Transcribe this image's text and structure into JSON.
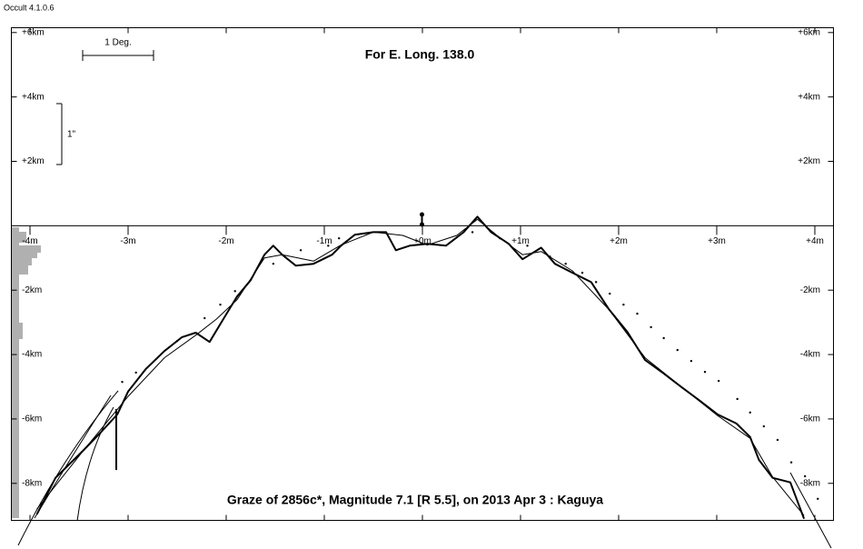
{
  "app_title": "Occult 4.1.0.6",
  "chart_data": {
    "type": "line",
    "title": "For E. Long. 138.0",
    "subtitle": "Graze of  2856c*,  Magnitude 7.1 [R 5.5],  on 2013 Apr  3  :  Kaguya",
    "annotations": [
      "1 Deg.",
      "1\""
    ],
    "xlim": [
      -4.19,
      4.19
    ],
    "ylim": [
      -9.15,
      6.15
    ],
    "xticks": [
      {
        "value": -4,
        "label": "-4m"
      },
      {
        "value": -3,
        "label": "-3m"
      },
      {
        "value": -2,
        "label": "-2m"
      },
      {
        "value": -1,
        "label": "-1m"
      },
      {
        "value": 0,
        "label": "+0m"
      },
      {
        "value": 1,
        "label": "+1m"
      },
      {
        "value": 2,
        "label": "+2m"
      },
      {
        "value": 3,
        "label": "+3m"
      },
      {
        "value": 4,
        "label": "+4m"
      }
    ],
    "yticks": [
      {
        "value": 6,
        "label": "+6km"
      },
      {
        "value": 4,
        "label": "+4km"
      },
      {
        "value": 2,
        "label": "+2km"
      },
      {
        "value": -2,
        "label": "-2km"
      },
      {
        "value": -4,
        "label": "-4km"
      },
      {
        "value": -6,
        "label": "-6km"
      },
      {
        "value": -8,
        "label": "-8km"
      }
    ],
    "series": [
      {
        "color": "#000000",
        "style": "thick",
        "x": [
          -3.93,
          -3.74,
          -3.46,
          -3.28,
          -3.11,
          -3.0,
          -2.82,
          -2.63,
          -2.45,
          -2.31,
          -2.17,
          -2.03,
          -1.89,
          -1.75,
          -1.61,
          -1.52,
          -1.43,
          -1.29,
          -1.11,
          -0.92,
          -0.83,
          -0.69,
          -0.5,
          -0.37,
          -0.27,
          -0.13,
          0.05,
          0.24,
          0.42,
          0.56,
          0.7,
          0.88,
          1.02,
          1.21,
          1.35,
          1.53,
          1.72,
          1.9,
          2.09,
          2.27,
          2.46,
          2.64,
          2.83,
          3.01,
          3.2,
          3.34,
          3.43,
          3.57,
          3.75,
          3.89
        ],
        "values": [
          -8.96,
          -7.83,
          -6.99,
          -6.42,
          -5.86,
          -5.15,
          -4.45,
          -3.89,
          -3.46,
          -3.32,
          -3.61,
          -2.9,
          -2.2,
          -1.69,
          -0.9,
          -0.62,
          -0.9,
          -1.24,
          -1.18,
          -0.9,
          -0.62,
          -0.28,
          -0.2,
          -0.2,
          -0.76,
          -0.62,
          -0.56,
          -0.62,
          -0.2,
          0.28,
          -0.2,
          -0.56,
          -1.04,
          -0.68,
          -1.18,
          -1.46,
          -1.75,
          -2.59,
          -3.3,
          -4.17,
          -4.59,
          -5.01,
          -5.44,
          -5.86,
          -6.14,
          -6.56,
          -7.27,
          -7.83,
          -7.97,
          -9.1
        ]
      },
      {
        "color": "#000000",
        "style": "thin",
        "x": [
          -3.93,
          -3.46,
          -3.0,
          -2.63,
          -2.31,
          -2.1,
          -1.89,
          -1.61,
          -1.43,
          -1.11,
          -0.83,
          -0.5,
          -0.2,
          0.05,
          0.35,
          0.56,
          0.8,
          1.02,
          1.21,
          1.53,
          1.9,
          2.27,
          2.64,
          3.01,
          3.34,
          3.57,
          3.89
        ],
        "values": [
          -8.8,
          -7.0,
          -5.3,
          -4.1,
          -3.4,
          -2.9,
          -2.3,
          -1.0,
          -0.9,
          -1.1,
          -0.6,
          -0.2,
          -0.3,
          -0.6,
          -0.3,
          0.2,
          -0.4,
          -0.9,
          -0.8,
          -1.4,
          -2.6,
          -4.1,
          -5.0,
          -5.9,
          -6.6,
          -7.8,
          -9.0
        ]
      },
      {
        "color": "#000000",
        "style": "dots",
        "x": [
          -3.06,
          -2.92,
          -2.5,
          -2.22,
          -2.06,
          -1.91,
          -1.52,
          -1.24,
          -0.96,
          -0.85,
          0.51,
          0.79,
          1.07,
          1.3,
          1.46,
          1.63,
          1.77,
          1.91,
          2.05,
          2.19,
          2.33,
          2.46,
          2.6,
          2.74,
          2.88,
          3.02,
          3.21,
          3.34,
          3.48,
          3.62,
          3.76,
          3.9,
          4.03
        ],
        "values": [
          -4.85,
          -4.56,
          -3.58,
          -2.87,
          -2.45,
          -2.03,
          -1.18,
          -0.76,
          -0.62,
          -0.39,
          -0.2,
          -0.39,
          -0.62,
          -0.96,
          -1.18,
          -1.46,
          -1.75,
          -2.11,
          -2.45,
          -2.73,
          -3.15,
          -3.49,
          -3.86,
          -4.2,
          -4.54,
          -4.82,
          -5.38,
          -5.8,
          -6.23,
          -6.65,
          -7.35,
          -7.78,
          -8.48
        ]
      }
    ]
  }
}
